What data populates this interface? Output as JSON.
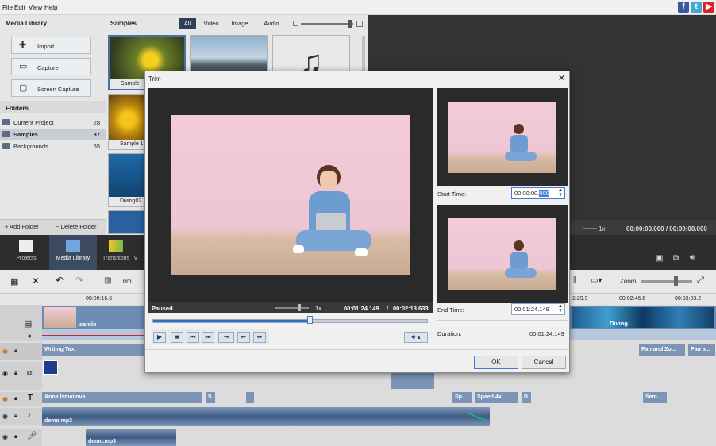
{
  "menu": {
    "file": "File",
    "edit": "Edit",
    "view": "View",
    "help": "Help"
  },
  "social": {
    "facebook": "f",
    "twitter": "t",
    "youtube": "▶"
  },
  "media_library": {
    "title": "Media Library",
    "import": "Import",
    "capture": "Capture",
    "screen_capture": "Screen Capture",
    "folders_title": "Folders",
    "folders": [
      {
        "name": "Current Project",
        "count": "28"
      },
      {
        "name": "Samples",
        "count": "37"
      },
      {
        "name": "Backgrounds",
        "count": "65"
      }
    ],
    "add_folder": "+ Add Folder",
    "delete_folder": "− Delete Folder"
  },
  "samples": {
    "title": "Samples",
    "tabs": {
      "all": "All",
      "video": "Video",
      "image": "Image",
      "audio": "Audio"
    },
    "items": {
      "sample": "Sample",
      "sample1": "Sample 1",
      "diving": "Diving02"
    }
  },
  "preview": {
    "speed": "1x",
    "time": "00:00:00.000 / 00:00:00.000"
  },
  "nav": {
    "projects": "Projects",
    "media_library": "Media Library",
    "transitions": "Transitions",
    "more": "V"
  },
  "toolbar": {
    "trim": "Trim",
    "zoom": "Zoom:"
  },
  "timeline": {
    "ticks": {
      "t1": "00:00:16.6",
      "t2": "2:29.9",
      "t3": "00:02:46.6",
      "t4": "00:03:03.2"
    },
    "video_clip": "samle",
    "diving": "Diving...",
    "writing_text": "Writing Text",
    "pan_zoom": "Pan and Zo...",
    "pan_a": "Pan a...",
    "anna": "Anna Ismailova",
    "s": "S.",
    "sp": "Sp...",
    "speed": "Speed 4x",
    "b": "B.",
    "sem": "Sem...",
    "audio1": "demo.mp3",
    "audio2": "demo.mp3"
  },
  "trim": {
    "title": "Trim",
    "close": "✕",
    "status": "Paused",
    "speed": "1x",
    "position": "00:01:24.149",
    "separator": "/",
    "total": "00:02:13.633",
    "start_label": "Start Time:",
    "start_value": "00:00:00.",
    "start_selected": "000",
    "end_label": "End Time:",
    "end_value": "00:01:24.149",
    "duration_label": "Duration:",
    "duration_value": "00:01:24.149",
    "ok": "OK",
    "cancel": "Cancel",
    "progress": 0.57
  }
}
